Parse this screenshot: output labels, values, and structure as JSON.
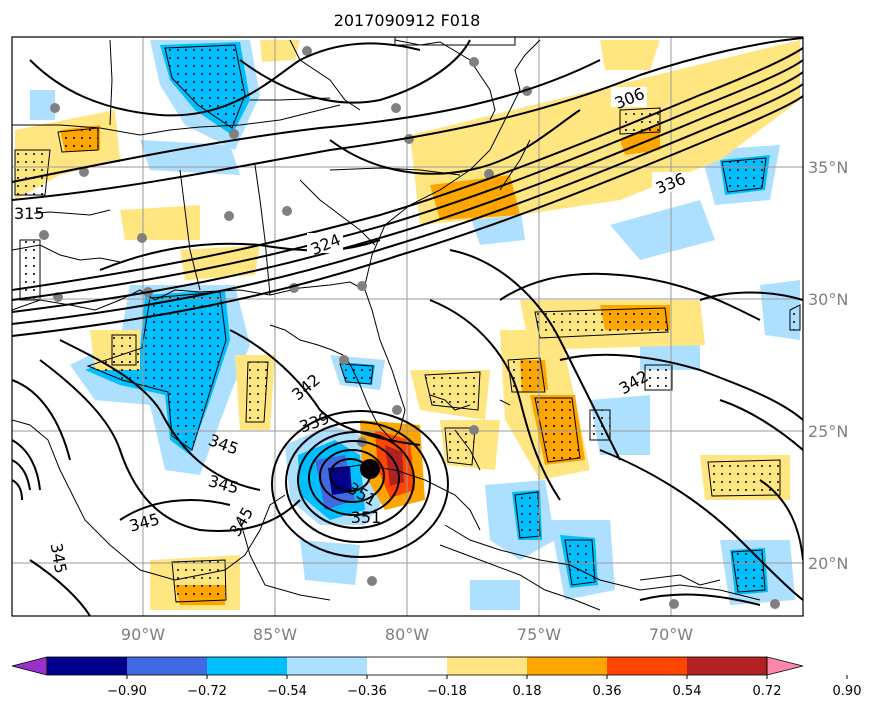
{
  "title": "2017090912 F018",
  "longitude_ticks": [
    "90°W",
    "85°W",
    "80°W",
    "75°W",
    "70°W"
  ],
  "latitude_ticks": [
    "35°N",
    "30°N",
    "25°N",
    "20°N"
  ],
  "contour_labels": [
    "306",
    "336",
    "324",
    "342",
    "339",
    "345",
    "345",
    "345",
    "345",
    "351",
    "351",
    "342",
    "345",
    "315"
  ],
  "colorbar": {
    "ticks": [
      "−0.90",
      "−0.72",
      "−0.54",
      "−0.36",
      "−0.18",
      "0.18",
      "0.36",
      "0.54",
      "0.72",
      "0.90"
    ],
    "colors": [
      "#9932CC",
      "#00008B",
      "#4169E1",
      "#00BFFF",
      "#ADDFFF",
      "#FFFFFF",
      "#FFE680",
      "#FFA500",
      "#FF4500",
      "#B22222",
      "#FF88AA"
    ]
  },
  "colors": {
    "coast": "#000000",
    "grid": "#9a9a9a",
    "station": "#808080",
    "contour": "#000000"
  }
}
